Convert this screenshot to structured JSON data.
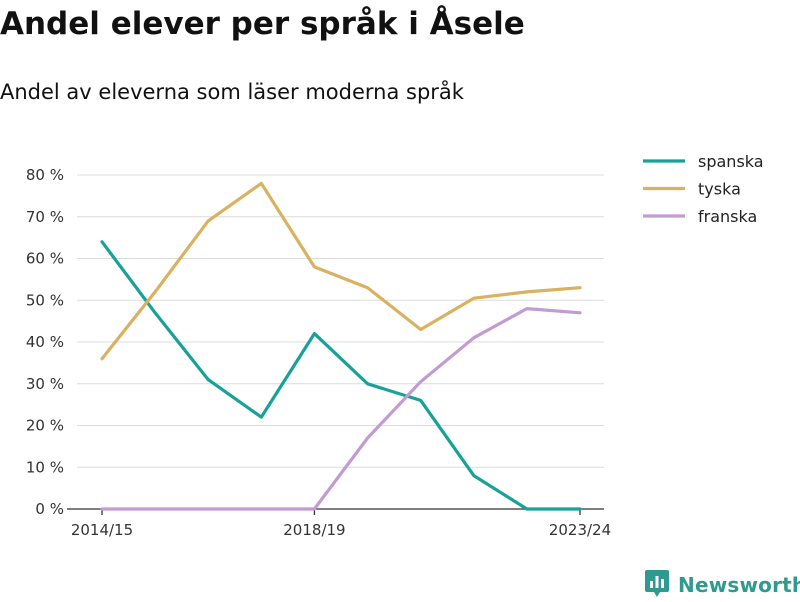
{
  "title": "Andel elever per språk i Åsele",
  "subtitle": "Andel av eleverna som läser moderna språk",
  "brand": "Newsworthy",
  "brand_icon": "newsworthy-logo-icon",
  "chart_data": {
    "type": "line",
    "x": [
      "2014/15",
      "2015/16",
      "2016/17",
      "2017/18",
      "2018/19",
      "2019/20",
      "2020/21",
      "2021/22",
      "2022/23",
      "2023/24"
    ],
    "x_tick_labels": [
      "2014/15",
      "2018/19",
      "2023/24"
    ],
    "y_tick_labels": [
      "0 %",
      "10 %",
      "20 %",
      "30 %",
      "40 %",
      "50 %",
      "60 %",
      "70 %",
      "80 %"
    ],
    "y_ticks": [
      0,
      10,
      20,
      30,
      40,
      50,
      60,
      70,
      80
    ],
    "ylim": [
      0,
      80
    ],
    "grid": true,
    "legend_position": "top-right",
    "series": [
      {
        "name": "spanska",
        "color": "#17a199",
        "values": [
          64,
          47,
          31,
          22,
          42,
          30,
          26,
          8,
          0,
          0
        ]
      },
      {
        "name": "tyska",
        "color": "#d9b161",
        "values": [
          36,
          52,
          69,
          78,
          58,
          53,
          43,
          50.5,
          52,
          53
        ]
      },
      {
        "name": "franska",
        "color": "#c39bd3",
        "values": [
          0,
          0,
          0,
          0,
          0,
          17,
          30.5,
          41,
          48,
          47
        ]
      }
    ]
  }
}
